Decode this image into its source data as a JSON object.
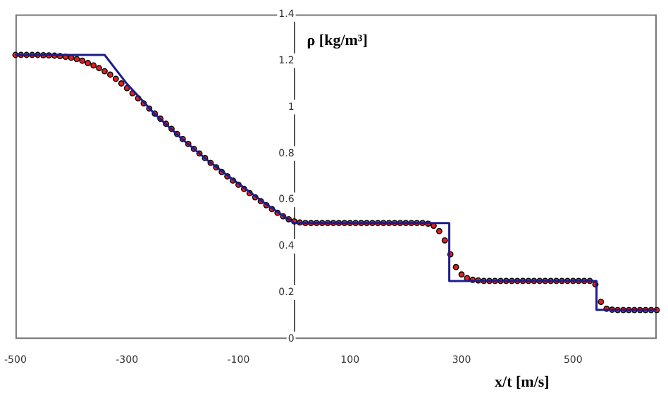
{
  "chart_data": {
    "type": "line",
    "xlabel": "x/t [m/s]",
    "ylabel": "ρ [kg/m³]",
    "x": [
      -500,
      -490,
      -480,
      -470,
      -460,
      -450,
      -440,
      -430,
      -420,
      -410,
      -400,
      -390,
      -380,
      -370,
      -360,
      -350,
      -340,
      -330,
      -320,
      -310,
      -300,
      -290,
      -280,
      -270,
      -260,
      -250,
      -240,
      -230,
      -220,
      -210,
      -200,
      -190,
      -180,
      -170,
      -160,
      -150,
      -140,
      -130,
      -120,
      -110,
      -100,
      -90,
      -80,
      -70,
      -60,
      -50,
      -40,
      -30,
      -20,
      -10,
      0,
      10,
      20,
      30,
      40,
      50,
      60,
      70,
      80,
      90,
      100,
      110,
      120,
      130,
      140,
      150,
      160,
      170,
      180,
      190,
      200,
      210,
      220,
      230,
      240,
      250,
      260,
      270,
      280,
      290,
      300,
      310,
      320,
      330,
      340,
      350,
      360,
      370,
      380,
      390,
      400,
      410,
      420,
      430,
      440,
      450,
      460,
      470,
      480,
      490,
      500,
      510,
      520,
      530,
      540,
      550,
      560,
      570,
      580,
      590,
      600,
      610,
      620,
      630,
      640,
      650
    ],
    "series": [
      {
        "type": "scatter",
        "color": "#000000",
        "values": [
          1.225,
          1.225,
          1.225,
          1.225,
          1.225,
          1.224,
          1.223,
          1.222,
          1.22,
          1.217,
          1.213,
          1.207,
          1.2,
          1.19,
          1.18,
          1.168,
          1.155,
          1.14,
          1.122,
          1.102,
          1.082,
          1.06,
          1.038,
          1.016,
          0.994,
          0.972,
          0.95,
          0.928,
          0.906,
          0.884,
          0.862,
          0.841,
          0.82,
          0.8,
          0.78,
          0.76,
          0.74,
          0.72,
          0.701,
          0.683,
          0.665,
          0.647,
          0.629,
          0.611,
          0.594,
          0.577,
          0.56,
          0.544,
          0.529,
          0.516,
          0.507,
          0.502,
          0.5,
          0.5,
          0.5,
          0.5,
          0.5,
          0.5,
          0.5,
          0.5,
          0.5,
          0.5,
          0.5,
          0.5,
          0.5,
          0.5,
          0.5,
          0.5,
          0.5,
          0.5,
          0.5,
          0.5,
          0.5,
          0.5,
          0.497,
          0.488,
          0.465,
          0.425,
          0.365,
          0.31,
          0.278,
          0.262,
          0.255,
          0.252,
          0.25,
          0.25,
          0.25,
          0.25,
          0.25,
          0.25,
          0.25,
          0.25,
          0.25,
          0.25,
          0.25,
          0.25,
          0.25,
          0.25,
          0.25,
          0.25,
          0.25,
          0.25,
          0.25,
          0.25,
          0.235,
          0.16,
          0.13,
          0.126,
          0.125,
          0.125,
          0.125,
          0.125,
          0.125,
          0.125,
          0.125,
          0.125
        ]
      },
      {
        "type": "scatter",
        "color": "#e02020",
        "values": [
          1.225,
          1.225,
          1.225,
          1.225,
          1.225,
          1.224,
          1.223,
          1.222,
          1.22,
          1.217,
          1.213,
          1.207,
          1.2,
          1.19,
          1.18,
          1.168,
          1.155,
          1.14,
          1.122,
          1.102,
          1.082,
          1.06,
          1.038,
          1.016,
          0.994,
          0.972,
          0.95,
          0.928,
          0.906,
          0.884,
          0.862,
          0.841,
          0.82,
          0.8,
          0.78,
          0.76,
          0.74,
          0.72,
          0.701,
          0.683,
          0.665,
          0.647,
          0.629,
          0.611,
          0.594,
          0.577,
          0.56,
          0.544,
          0.529,
          0.516,
          0.507,
          0.502,
          0.5,
          0.5,
          0.5,
          0.5,
          0.5,
          0.5,
          0.5,
          0.5,
          0.5,
          0.5,
          0.5,
          0.5,
          0.5,
          0.5,
          0.5,
          0.5,
          0.5,
          0.5,
          0.5,
          0.5,
          0.5,
          0.5,
          0.497,
          0.488,
          0.465,
          0.425,
          0.365,
          0.31,
          0.278,
          0.262,
          0.255,
          0.252,
          0.25,
          0.25,
          0.25,
          0.25,
          0.25,
          0.25,
          0.25,
          0.25,
          0.25,
          0.25,
          0.25,
          0.25,
          0.25,
          0.25,
          0.25,
          0.25,
          0.25,
          0.25,
          0.25,
          0.25,
          0.235,
          0.16,
          0.13,
          0.126,
          0.125,
          0.125,
          0.125,
          0.125,
          0.125,
          0.125,
          0.125,
          0.125
        ]
      },
      {
        "color": "#1c1c8a",
        "marker": "none",
        "x": [
          -500,
          -340,
          -300,
          -250,
          -200,
          -150,
          -100,
          -50,
          0,
          278,
          278,
          542,
          542,
          650
        ],
        "values": [
          1.225,
          1.225,
          1.1,
          0.97,
          0.86,
          0.76,
          0.67,
          0.58,
          0.5,
          0.5,
          0.25,
          0.25,
          0.125,
          0.125
        ]
      }
    ],
    "xlim": [
      -500,
      650
    ],
    "xticks": [
      -500,
      -300,
      -100,
      100,
      300,
      500
    ],
    "ylim": [
      0,
      1.4
    ],
    "yticks": [
      0,
      0.2,
      0.4,
      0.6,
      0.8,
      1,
      1.2,
      1.4
    ],
    "marker": "circle",
    "grid": false,
    "legend": false
  }
}
